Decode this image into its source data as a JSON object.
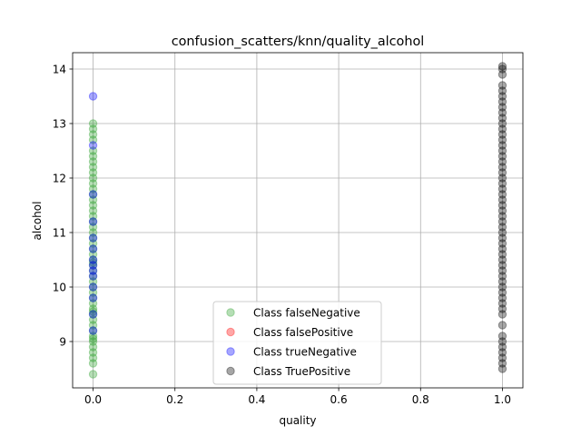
{
  "chart_data": {
    "type": "scatter",
    "title": "confusion_scatters/knn/quality_alcohol",
    "xlabel": "quality",
    "ylabel": "alcohol",
    "xlim": [
      -0.05,
      1.05
    ],
    "ylim": [
      8.15,
      14.3
    ],
    "xticks": [
      "0.0",
      "0.2",
      "0.4",
      "0.6",
      "0.8",
      "1.0"
    ],
    "xtick_values": [
      0.0,
      0.2,
      0.4,
      0.6,
      0.8,
      1.0
    ],
    "yticks": [
      "9",
      "10",
      "11",
      "12",
      "13",
      "14"
    ],
    "ytick_values": [
      9,
      10,
      11,
      12,
      13,
      14
    ],
    "grid": true,
    "legend_position": "bottom-center",
    "series": [
      {
        "name": "Class falseNegative",
        "color": "#2ca02c",
        "x": [
          0,
          0,
          0,
          0,
          0,
          0,
          0,
          0,
          0,
          0,
          0,
          0,
          0,
          0,
          0,
          0,
          0,
          0,
          0,
          0,
          0,
          0,
          0,
          0,
          0,
          0,
          0,
          0,
          0,
          0,
          0,
          0,
          0,
          0,
          0,
          0,
          0,
          0,
          0,
          0,
          0,
          0,
          0,
          0,
          0,
          0,
          0,
          0
        ],
        "y": [
          8.4,
          8.6,
          8.7,
          8.8,
          8.9,
          9.0,
          9.1,
          9.2,
          9.3,
          9.4,
          9.5,
          9.6,
          9.7,
          9.8,
          9.9,
          10.0,
          10.1,
          10.2,
          10.3,
          10.4,
          10.5,
          10.6,
          10.7,
          10.8,
          10.9,
          11.0,
          11.1,
          11.2,
          11.3,
          11.4,
          11.5,
          11.6,
          11.7,
          11.8,
          11.9,
          12.0,
          12.1,
          12.2,
          12.3,
          12.4,
          12.5,
          12.7,
          12.8,
          12.9,
          13.0,
          9.05,
          9.55,
          10.45
        ]
      },
      {
        "name": "Class falsePositive",
        "color": "#ff0000",
        "x": [],
        "y": []
      },
      {
        "name": "Class trueNegative",
        "color": "#0000ff",
        "x": [
          0,
          0,
          0,
          0,
          0,
          0,
          0,
          0,
          0,
          0,
          0,
          0,
          0,
          0
        ],
        "y": [
          9.2,
          9.5,
          9.8,
          10.0,
          10.2,
          10.3,
          10.4,
          10.5,
          10.7,
          10.9,
          11.2,
          11.7,
          12.6,
          13.5
        ]
      },
      {
        "name": "Class TruePositive",
        "color": "#000000",
        "x": [
          1,
          1,
          1,
          1,
          1,
          1,
          1,
          1,
          1,
          1,
          1,
          1,
          1,
          1,
          1,
          1,
          1,
          1,
          1,
          1,
          1,
          1,
          1,
          1,
          1,
          1,
          1,
          1,
          1,
          1,
          1,
          1,
          1,
          1,
          1,
          1,
          1,
          1,
          1,
          1,
          1,
          1,
          1,
          1,
          1,
          1,
          1,
          1,
          1,
          1,
          1,
          1,
          1,
          1
        ],
        "y": [
          8.5,
          8.6,
          8.7,
          8.8,
          8.9,
          9.0,
          9.1,
          9.3,
          9.5,
          9.6,
          9.7,
          9.8,
          9.9,
          10.0,
          10.1,
          10.2,
          10.3,
          10.4,
          10.5,
          10.6,
          10.7,
          10.8,
          10.9,
          11.0,
          11.1,
          11.2,
          11.3,
          11.4,
          11.5,
          11.6,
          11.7,
          11.8,
          11.9,
          12.0,
          12.1,
          12.2,
          12.3,
          12.4,
          12.5,
          12.6,
          12.7,
          12.8,
          12.9,
          13.0,
          13.1,
          13.2,
          13.3,
          13.4,
          13.5,
          13.6,
          13.7,
          13.9,
          14.0,
          14.05
        ]
      }
    ]
  }
}
